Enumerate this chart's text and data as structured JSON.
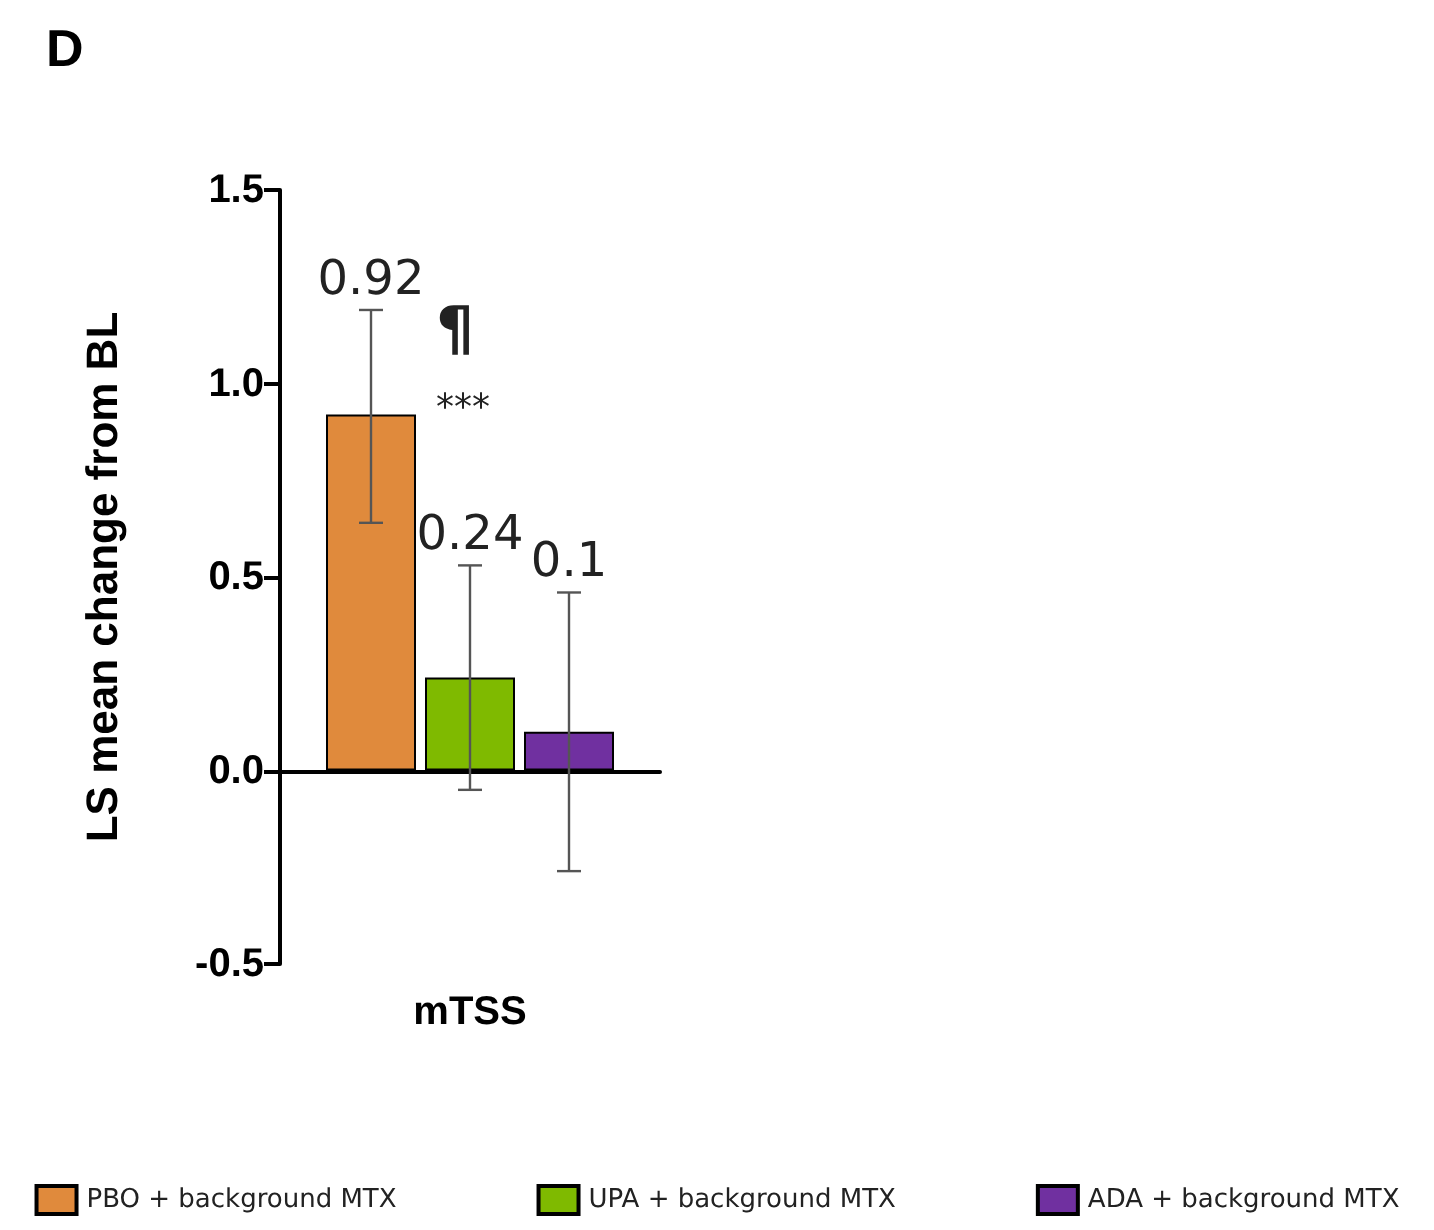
{
  "chart_data": {
    "type": "bar",
    "title": "D",
    "ylabel": "LS mean change from BL",
    "categories": [
      "mTSS"
    ],
    "series": [
      {
        "name": "PBO + background MTX",
        "color": "#e08a3c",
        "values": [
          0.92
        ],
        "errors": [
          [
            0.64,
            1.19
          ]
        ]
      },
      {
        "name": "UPA + background MTX",
        "color": "#7fba00",
        "values": [
          0.24
        ],
        "errors": [
          [
            -0.05,
            0.53
          ]
        ]
      },
      {
        "name": "ADA + background MTX",
        "color": "#7030a0",
        "values": [
          0.1
        ],
        "errors": [
          [
            -0.26,
            0.46
          ]
        ]
      }
    ],
    "ylim": [
      -0.5,
      1.5
    ],
    "yticks": [
      -0.5,
      {
        "value": 0,
        "label": "0.0"
      },
      0.5,
      {
        "value": 1,
        "label": "1.0"
      },
      1.5
    ],
    "data_labels": true,
    "legend": "bottom",
    "annotations": [
      "¶",
      "***"
    ]
  }
}
